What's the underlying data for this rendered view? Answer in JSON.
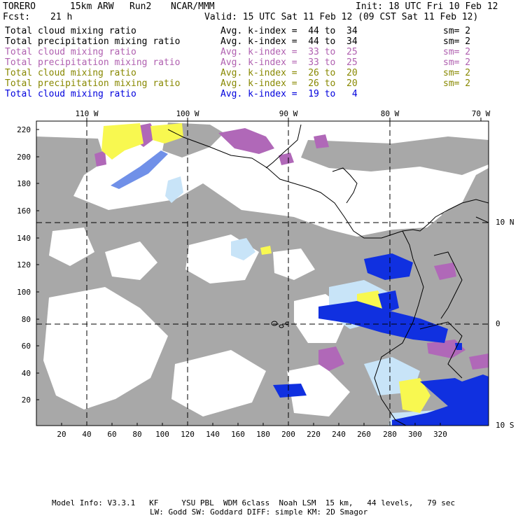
{
  "header": {
    "model": "TORERO",
    "resolution": "15km ARW",
    "run": "Run2",
    "org": "NCAR/MMM",
    "init": "Init: 18 UTC Fri 10 Feb 12",
    "fcst_label": "Fcst:",
    "fcst_value": "21 h",
    "valid": "Valid: 15 UTC Sat 11 Feb 12 (09 CST Sat 11 Feb 12)"
  },
  "legend": [
    {
      "field": "Total cloud mixing ratio",
      "range": "Avg. k-index =  44 to  34",
      "sm": "sm= 2",
      "color": "#000000"
    },
    {
      "field": "Total precipitation mixing ratio",
      "range": "Avg. k-index =  44 to  34",
      "sm": "sm= 2",
      "color": "#000000"
    },
    {
      "field": "Total cloud mixing ratio",
      "range": "Avg. k-index =  33 to  25",
      "sm": "sm= 2",
      "color": "#b060b0"
    },
    {
      "field": "Total precipitation mixing ratio",
      "range": "Avg. k-index =  33 to  25",
      "sm": "sm= 2",
      "color": "#b060b0"
    },
    {
      "field": "Total cloud mixing ratio",
      "range": "Avg. k-index =  26 to  20",
      "sm": "sm= 2",
      "color": "#888800"
    },
    {
      "field": "Total precipitation mixing ratio",
      "range": "Avg. k-index =  26 to  20",
      "sm": "sm= 2",
      "color": "#888800"
    },
    {
      "field": "Total cloud mixing ratio",
      "range": "Avg. k-index =  19 to   4",
      "sm": "",
      "color": "#0000dd"
    }
  ],
  "map": {
    "top_ticks": [
      "110 W",
      "100 W",
      "90 W",
      "80 W",
      "70 W"
    ],
    "right_ticks": [
      "10 N",
      "0",
      "10 S"
    ],
    "left_ticks": [
      "220",
      "200",
      "180",
      "160",
      "140",
      "120",
      "100",
      "80",
      "60",
      "40",
      "20"
    ],
    "bottom_ticks": [
      "20",
      "40",
      "60",
      "80",
      "100",
      "120",
      "140",
      "160",
      "180",
      "200",
      "220",
      "240",
      "260",
      "280",
      "300",
      "320"
    ],
    "colors": {
      "gray": "#a8a8a8",
      "purple": "#b068b8",
      "yellow": "#f8f850",
      "lightblue": "#c8e4f8",
      "blue": "#1030e0",
      "darkblue": "#0010c0"
    }
  },
  "footer": {
    "line1": "Model Info: V3.3.1   KF     YSU PBL  WDM 6class  Noah LSM  15 km,   44 levels,   79 sec",
    "line2": "LW: Godd SW: Goddard DIFF: simple KM: 2D Smagor"
  }
}
